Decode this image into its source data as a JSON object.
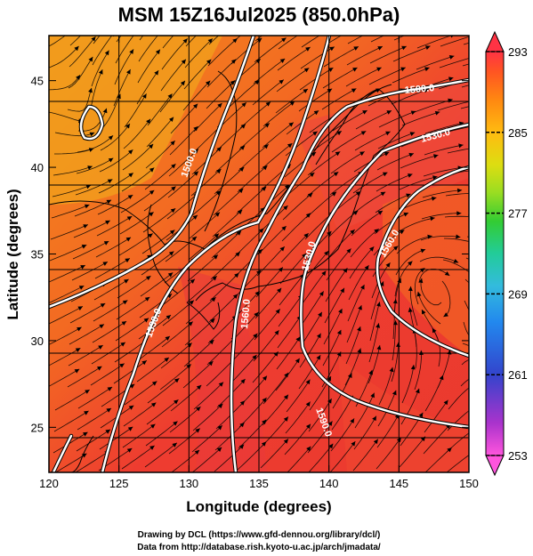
{
  "title": "MSM 15Z16Jul2025 (850.0hPa)",
  "xlabel": "Longitude (degrees)",
  "ylabel": "Latitude  (degrees)",
  "x_ticks": [
    120,
    125,
    130,
    135,
    140,
    145,
    150
  ],
  "y_ticks": [
    25,
    30,
    35,
    40,
    45
  ],
  "xlim": [
    120,
    150
  ],
  "ylim": [
    22.4,
    47.6
  ],
  "colorbar": {
    "ticks": [
      293,
      285,
      277,
      269,
      261,
      253
    ],
    "range": [
      253,
      293
    ],
    "colors": [
      "#ff55dd",
      "#aa33cc",
      "#3344cc",
      "#2288ee",
      "#33bbdd",
      "#22cc99",
      "#33cc33",
      "#99dd22",
      "#dddd11",
      "#ffbb11",
      "#ff8811",
      "#ff5522",
      "#ff3344"
    ]
  },
  "contours": [
    {
      "label": "1500.0"
    },
    {
      "label": "1530.0"
    },
    {
      "label": "1560.0"
    },
    {
      "label": "1590.0"
    },
    {
      "label": "1560.0"
    },
    {
      "label": "1530.0"
    },
    {
      "label": "1500.0"
    },
    {
      "label": "1530.0"
    }
  ],
  "credits": {
    "line1": "Drawing by DCL (https://www.gfd-dennou.org/library/dcl/)",
    "line2": "Data from http://database.rish.kyoto-u.ac.jp/arch/jmadata/"
  }
}
